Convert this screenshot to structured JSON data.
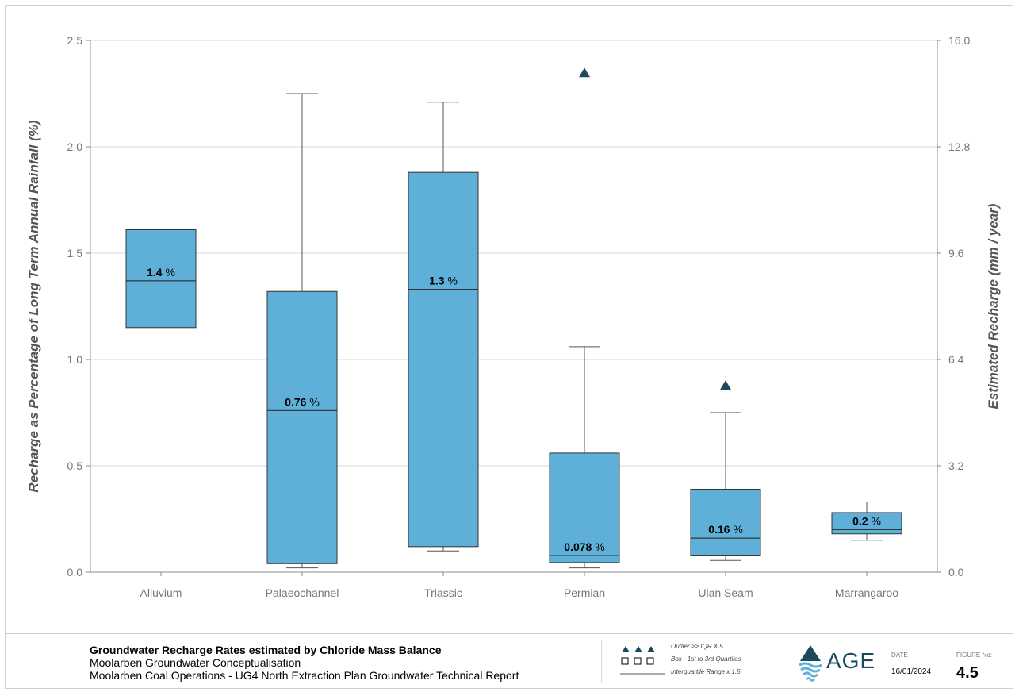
{
  "chart_data": {
    "type": "box",
    "categories": [
      "Alluvium",
      "Palaeochannel",
      "Triassic",
      "Permian",
      "Ulan Seam",
      "Marrangaroo"
    ],
    "ylabel": "Recharge as Percentage of Long Term Annual Rainfall (%)",
    "y2label": "Estimated Recharge (mm / year)",
    "ylim": [
      0,
      2.5
    ],
    "y2lim": [
      0,
      16.0
    ],
    "yticks": [
      "0.0",
      "0.5",
      "1.0",
      "1.5",
      "2.0",
      "2.5"
    ],
    "y2ticks": [
      "0.0",
      "3.2",
      "6.4",
      "9.6",
      "12.8",
      "16.0"
    ],
    "grid": true,
    "box_color": "#5fb0d9",
    "outlier_color": "#1c4a5c",
    "boxes": [
      {
        "category": "Alluvium",
        "whisker_low": 1.15,
        "q1": 1.15,
        "median": 1.37,
        "q3": 1.61,
        "whisker_high": 1.61,
        "label": "1.4 %",
        "outliers": []
      },
      {
        "category": "Palaeochannel",
        "whisker_low": 0.02,
        "q1": 0.04,
        "median": 0.76,
        "q3": 1.32,
        "whisker_high": 2.25,
        "label": "0.76 %",
        "outliers": []
      },
      {
        "category": "Triassic",
        "whisker_low": 0.1,
        "q1": 0.12,
        "median": 1.33,
        "q3": 1.88,
        "whisker_high": 2.21,
        "label": "1.3 %",
        "outliers": []
      },
      {
        "category": "Permian",
        "whisker_low": 0.02,
        "q1": 0.045,
        "median": 0.078,
        "q3": 0.56,
        "whisker_high": 1.06,
        "label": "0.078 %",
        "outliers": [
          2.35
        ]
      },
      {
        "category": "Ulan Seam",
        "whisker_low": 0.055,
        "q1": 0.08,
        "median": 0.16,
        "q3": 0.39,
        "whisker_high": 0.75,
        "label": "0.16 %",
        "outliers": [
          0.88
        ]
      },
      {
        "category": "Marrangaroo",
        "whisker_low": 0.15,
        "q1": 0.18,
        "median": 0.2,
        "q3": 0.28,
        "whisker_high": 0.33,
        "label": "0.2 %",
        "outliers": []
      }
    ]
  },
  "footer": {
    "title_bold": "Groundwater Recharge Rates estimated by Chloride Mass Balance",
    "subtitle_1": "Moolarben Groundwater Conceptualisation",
    "subtitle_2": "Moolarben Coal Operations - UG4 North Extraction Plan Groundwater Technical Report",
    "legend": {
      "outlier": "Outlier >> IQR X 5",
      "box": "Box - 1st to 3rd Quartiles",
      "whisker": "Interquartile Range x 1.5"
    },
    "logo_text": "AGE",
    "date_label": "DATE",
    "date_value": "16/01/2024",
    "figure_label": "FIGURE No:",
    "figure_value": "4.5"
  }
}
